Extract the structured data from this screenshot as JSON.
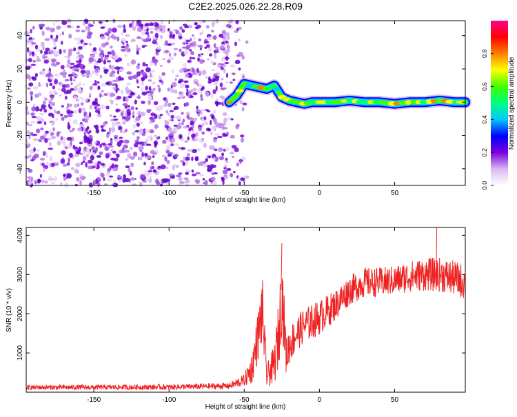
{
  "title": "C2E2.2025.026.22.28.R09",
  "chart_data": [
    {
      "type": "heatmap",
      "xlabel": "Height of straight line (km)",
      "ylabel": "Frequency (Hz)",
      "xlim": [
        -195,
        97
      ],
      "ylim": [
        -50,
        49
      ],
      "xticks": [
        -150,
        -100,
        -50,
        0,
        50
      ],
      "yticks": [
        -40,
        -20,
        0,
        20,
        40
      ],
      "colorbar": {
        "label": "Normalized spectral amplitude",
        "range": [
          0,
          1
        ],
        "ticks": [
          "0.0",
          "0.2",
          "0.4",
          "0.6",
          "0.8"
        ],
        "colors": [
          "#ffffff",
          "#d9b8f0",
          "#7a00e0",
          "#0000ff",
          "#00c8ff",
          "#00ff80",
          "#40ff00",
          "#ffff00",
          "#ff8000",
          "#ff0000",
          "#ff0090"
        ]
      },
      "noise_region": {
        "x": [
          -195,
          -60
        ],
        "y": [
          -50,
          49
        ],
        "amplitude": 0.15
      },
      "ridge": {
        "x": [
          -60,
          -55,
          -50,
          -45,
          -40,
          -35,
          -30,
          -25,
          -20,
          -15,
          -10,
          -5,
          0,
          10,
          20,
          30,
          40,
          50,
          60,
          70,
          80,
          90,
          97
        ],
        "y": [
          0,
          4,
          11,
          10,
          9,
          8,
          10,
          3,
          1,
          0,
          -1,
          0,
          0,
          0,
          1,
          0,
          0,
          -1,
          0,
          0,
          1,
          0,
          0
        ],
        "peak_amplitude": 0.9
      }
    },
    {
      "type": "line",
      "xlabel": "Height of straight line (km)",
      "ylabel": "SNR (10 * v/v)",
      "xlim": [
        -195,
        97
      ],
      "ylim": [
        0,
        4200
      ],
      "xticks": [
        -150,
        -100,
        -50,
        0,
        50
      ],
      "yticks": [
        1000,
        2000,
        3000,
        4000
      ],
      "color": "#ee2222",
      "envelope": {
        "x": [
          -195,
          -100,
          -60,
          -50,
          -45,
          -40,
          -38,
          -35,
          -30,
          -27,
          -25,
          -22,
          -20,
          -15,
          -10,
          -5,
          0,
          10,
          20,
          30,
          40,
          50,
          60,
          70,
          80,
          90,
          97
        ],
        "mean": [
          120,
          130,
          160,
          300,
          600,
          1600,
          2100,
          400,
          700,
          1500,
          2600,
          900,
          1200,
          1500,
          1700,
          1800,
          1900,
          2200,
          2600,
          2800,
          2800,
          2850,
          2950,
          3000,
          3000,
          2900,
          2800
        ],
        "spread": [
          60,
          70,
          80,
          150,
          400,
          700,
          900,
          300,
          500,
          900,
          1100,
          500,
          500,
          450,
          450,
          450,
          450,
          400,
          380,
          380,
          380,
          380,
          400,
          420,
          440,
          450,
          450
        ]
      },
      "max_points": [
        {
          "x": -25,
          "y": 3800
        },
        {
          "x": 78,
          "y": 4200
        }
      ]
    }
  ]
}
